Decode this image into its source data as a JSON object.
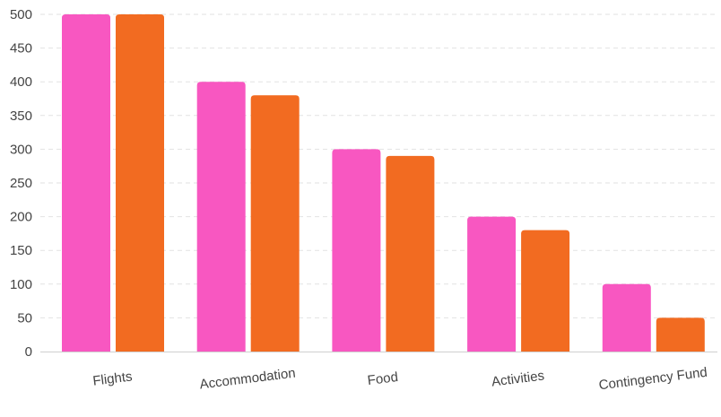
{
  "chart_data": {
    "type": "bar",
    "title": "",
    "xlabel": "",
    "ylabel": "",
    "categories": [
      "Flights",
      "Accommodation",
      "Food",
      "Activities",
      "Contingency Fund"
    ],
    "series": [
      {
        "color": "#f857c1",
        "values": [
          500,
          400,
          300,
          200,
          100
        ]
      },
      {
        "color": "#f26b21",
        "values": [
          500,
          380,
          290,
          180,
          50
        ]
      }
    ],
    "ylim": [
      0,
      500
    ],
    "yticks": [
      "0",
      "50",
      "100",
      "150",
      "200",
      "250",
      "300",
      "350",
      "400",
      "450",
      "500"
    ],
    "grid": true,
    "gridline_color": "#e2e2e2",
    "axis_color": "#cfcfcf",
    "legend": "none"
  }
}
